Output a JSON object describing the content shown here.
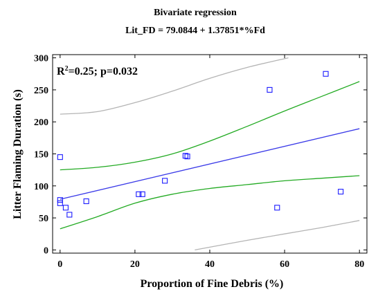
{
  "chart_data": {
    "type": "scatter",
    "title": "Bivariate regression",
    "subtitle": "Lit_FD = 79.0844 + 1.37851*%Fd",
    "annotation_prefix": "R",
    "annotation_sup": "2",
    "annotation_suffix": "=0.25; p=0.032",
    "xlabel": "Proportion of Fine Debris (%)",
    "ylabel": "Litter Flaming Duration (s)",
    "xlim": [
      -2,
      82
    ],
    "ylim": [
      -5,
      305
    ],
    "x_ticks": [
      "0",
      "20",
      "40",
      "60",
      "80"
    ],
    "y_ticks": [
      "0",
      "50",
      "100",
      "150",
      "200",
      "250",
      "300"
    ],
    "grid": false,
    "regression": {
      "intercept": 79.0844,
      "slope": 1.37851,
      "x_range": [
        0,
        80
      ]
    },
    "points": [
      [
        0,
        145
      ],
      [
        0,
        78
      ],
      [
        0,
        73
      ],
      [
        1.5,
        66
      ],
      [
        2.5,
        55
      ],
      [
        7,
        76
      ],
      [
        21,
        87
      ],
      [
        22,
        87
      ],
      [
        28,
        108
      ],
      [
        33.5,
        147
      ],
      [
        34,
        146
      ],
      [
        56,
        250
      ],
      [
        58,
        66
      ],
      [
        71,
        275
      ],
      [
        75,
        91
      ]
    ],
    "confidence_upper": [
      [
        0,
        125
      ],
      [
        10,
        129
      ],
      [
        20,
        137
      ],
      [
        30,
        150
      ],
      [
        40,
        170
      ],
      [
        50,
        193
      ],
      [
        60,
        217
      ],
      [
        70,
        240
      ],
      [
        80,
        263
      ]
    ],
    "confidence_lower": [
      [
        0,
        33
      ],
      [
        10,
        52
      ],
      [
        20,
        73
      ],
      [
        30,
        87
      ],
      [
        40,
        96
      ],
      [
        50,
        102
      ],
      [
        60,
        108
      ],
      [
        70,
        112
      ],
      [
        80,
        116
      ]
    ],
    "prediction_upper": [
      [
        0,
        212
      ],
      [
        10,
        216
      ],
      [
        20,
        230
      ],
      [
        30,
        248
      ],
      [
        40,
        268
      ],
      [
        50,
        285
      ],
      [
        61,
        300
      ]
    ],
    "prediction_lower": [
      [
        36,
        0
      ],
      [
        50,
        15
      ],
      [
        60,
        25
      ],
      [
        70,
        35
      ],
      [
        80,
        46
      ]
    ],
    "colors": {
      "points": "#1a1aff",
      "regression": "#3a3ae8",
      "confidence": "#22aa22",
      "prediction": "#b4b4b4",
      "axes": "#000000"
    }
  }
}
